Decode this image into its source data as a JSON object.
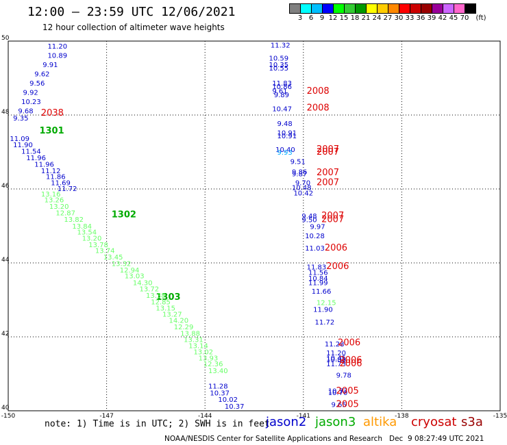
{
  "header": {
    "title": "12:00 – 23:59 UTC 12/06/2021",
    "subtitle": "12 hour collection of altimeter wave heights"
  },
  "scale": {
    "colors": [
      "#808080",
      "#00ffff",
      "#00bfff",
      "#0000ff",
      "#00ff00",
      "#33cc33",
      "#009900",
      "#ffff00",
      "#ffcc00",
      "#ff8800",
      "#ff0000",
      "#cc0000",
      "#990000",
      "#990099",
      "#cc66ff",
      "#ff66cc",
      "#000000"
    ],
    "labels": [
      "3",
      "6",
      "9",
      "12",
      "15",
      "18",
      "21",
      "24",
      "27",
      "30",
      "33",
      "36",
      "39",
      "42",
      "45",
      "70",
      "(ft)"
    ]
  },
  "chart_data": {
    "type": "scatter",
    "xlim": [
      -150,
      -135
    ],
    "ylim": [
      40,
      50
    ],
    "x_ticks": [
      "-150",
      "-147",
      "-144",
      "-141",
      "-138",
      "-135"
    ],
    "y_ticks": [
      "50",
      "48",
      "46",
      "44",
      "42",
      "40"
    ],
    "grid": true,
    "series": [
      {
        "name": "jason2",
        "color": "#0000cc",
        "points": [
          {
            "x": -148.8,
            "y": 49.8,
            "label": "11.20"
          },
          {
            "x": -148.8,
            "y": 49.55,
            "label": "10.89"
          },
          {
            "x": -148.95,
            "y": 49.3,
            "label": "9.91"
          },
          {
            "x": -149.2,
            "y": 49.05,
            "label": "9.62"
          },
          {
            "x": -149.35,
            "y": 48.8,
            "label": "9.56"
          },
          {
            "x": -149.55,
            "y": 48.55,
            "label": "9.92"
          },
          {
            "x": -149.6,
            "y": 48.3,
            "label": "10.23"
          },
          {
            "x": -149.7,
            "y": 48.05,
            "label": "9.68"
          },
          {
            "x": -149.85,
            "y": 47.85,
            "label": "9.35"
          },
          {
            "x": -149.95,
            "y": 47.3,
            "label": "11.09"
          },
          {
            "x": -149.85,
            "y": 47.13,
            "label": "11.90"
          },
          {
            "x": -149.6,
            "y": 46.95,
            "label": "11.54"
          },
          {
            "x": -149.45,
            "y": 46.78,
            "label": "11.96"
          },
          {
            "x": -149.2,
            "y": 46.6,
            "label": "11.96"
          },
          {
            "x": -149.0,
            "y": 46.43,
            "label": "11.12"
          },
          {
            "x": -148.85,
            "y": 46.27,
            "label": "11.86"
          },
          {
            "x": -148.7,
            "y": 46.1,
            "label": "11.69"
          },
          {
            "x": -148.5,
            "y": 45.94,
            "label": "11.72"
          },
          {
            "x": -143.9,
            "y": 40.6,
            "label": "11.28"
          },
          {
            "x": -143.85,
            "y": 40.42,
            "label": "10.37"
          },
          {
            "x": -143.6,
            "y": 40.24,
            "label": "10.02"
          },
          {
            "x": -143.4,
            "y": 40.06,
            "label": "10.37"
          },
          {
            "x": -142.0,
            "y": 49.82,
            "label": "11.32"
          },
          {
            "x": -142.05,
            "y": 49.47,
            "label": "10.59"
          },
          {
            "x": -142.05,
            "y": 49.3,
            "label": "10.35"
          },
          {
            "x": -142.05,
            "y": 49.2,
            "label": "10.55"
          },
          {
            "x": -141.95,
            "y": 48.8,
            "label": "11.83"
          },
          {
            "x": -141.95,
            "y": 48.7,
            "label": "10.86"
          },
          {
            "x": -141.95,
            "y": 48.58,
            "label": "9.61"
          },
          {
            "x": -141.9,
            "y": 48.48,
            "label": "9.89"
          },
          {
            "x": -141.95,
            "y": 48.1,
            "label": "10.47"
          },
          {
            "x": -141.8,
            "y": 47.7,
            "label": "9.48"
          },
          {
            "x": -141.8,
            "y": 47.45,
            "label": "10.91"
          },
          {
            "x": -141.8,
            "y": 47.37,
            "label": "10.91"
          },
          {
            "x": -141.85,
            "y": 47.0,
            "label": "10.40"
          },
          {
            "x": -141.4,
            "y": 46.68,
            "label": "9.51"
          },
          {
            "x": -141.35,
            "y": 46.4,
            "label": "9.86"
          },
          {
            "x": -141.35,
            "y": 46.34,
            "label": "9.87"
          },
          {
            "x": -141.25,
            "y": 46.1,
            "label": "9.70"
          },
          {
            "x": -141.35,
            "y": 45.97,
            "label": "10.48"
          },
          {
            "x": -141.3,
            "y": 45.82,
            "label": "10.42"
          },
          {
            "x": -141.05,
            "y": 45.2,
            "label": "9.48"
          },
          {
            "x": -141.05,
            "y": 45.1,
            "label": "9.50"
          },
          {
            "x": -140.8,
            "y": 44.92,
            "label": "9.97"
          },
          {
            "x": -140.95,
            "y": 44.67,
            "label": "10.28"
          },
          {
            "x": -140.95,
            "y": 44.33,
            "label": "11.03"
          },
          {
            "x": -140.9,
            "y": 43.82,
            "label": "11.83"
          },
          {
            "x": -140.85,
            "y": 43.68,
            "label": "11.56"
          },
          {
            "x": -140.85,
            "y": 43.52,
            "label": "10.84"
          },
          {
            "x": -140.85,
            "y": 43.4,
            "label": "11.99"
          },
          {
            "x": -140.75,
            "y": 43.17,
            "label": "11.66"
          },
          {
            "x": -140.7,
            "y": 42.68,
            "label": "11.90"
          },
          {
            "x": -140.65,
            "y": 42.33,
            "label": "11.72"
          },
          {
            "x": -140.35,
            "y": 41.74,
            "label": "11.28"
          },
          {
            "x": -140.3,
            "y": 41.5,
            "label": "11.20"
          },
          {
            "x": -140.3,
            "y": 41.36,
            "label": "10.45"
          },
          {
            "x": -140.3,
            "y": 41.32,
            "label": "10.88"
          },
          {
            "x": -140.3,
            "y": 41.2,
            "label": "11.73"
          },
          {
            "x": -140.0,
            "y": 40.9,
            "label": "9.78"
          },
          {
            "x": -140.25,
            "y": 40.47,
            "label": "10.77"
          },
          {
            "x": -140.25,
            "y": 40.43,
            "label": "10.70"
          },
          {
            "x": -140.15,
            "y": 40.1,
            "label": "9.65"
          }
        ]
      },
      {
        "name": "jason3",
        "color": "#00aa00",
        "points": [
          {
            "x": -149.05,
            "y": 47.5,
            "label": "1301"
          },
          {
            "x": -146.85,
            "y": 45.23,
            "label": "1302"
          },
          {
            "x": -145.5,
            "y": 43.0,
            "label": "1303"
          }
        ]
      },
      {
        "name": "jason3 (light)",
        "color": "#66ff66",
        "points": [
          {
            "x": -149.0,
            "y": 45.8,
            "label": "13.16"
          },
          {
            "x": -148.9,
            "y": 45.64,
            "label": "13.26"
          },
          {
            "x": -148.75,
            "y": 45.46,
            "label": "13.20"
          },
          {
            "x": -148.55,
            "y": 45.29,
            "label": "12.87"
          },
          {
            "x": -148.3,
            "y": 45.11,
            "label": "13.82"
          },
          {
            "x": -148.05,
            "y": 44.93,
            "label": "13.84"
          },
          {
            "x": -147.9,
            "y": 44.77,
            "label": "13.54"
          },
          {
            "x": -147.75,
            "y": 44.6,
            "label": "13.20"
          },
          {
            "x": -147.55,
            "y": 44.43,
            "label": "13.78"
          },
          {
            "x": -147.35,
            "y": 44.27,
            "label": "13.74"
          },
          {
            "x": -147.1,
            "y": 44.09,
            "label": "13.45"
          },
          {
            "x": -146.85,
            "y": 43.92,
            "label": "13.32"
          },
          {
            "x": -146.6,
            "y": 43.74,
            "label": "12.94"
          },
          {
            "x": -146.45,
            "y": 43.58,
            "label": "13.03"
          },
          {
            "x": -146.2,
            "y": 43.4,
            "label": "14.30"
          },
          {
            "x": -146.0,
            "y": 43.23,
            "label": "13.72"
          },
          {
            "x": -145.8,
            "y": 43.06,
            "label": "13.38"
          },
          {
            "x": -145.65,
            "y": 42.88,
            "label": "12.85"
          },
          {
            "x": -145.5,
            "y": 42.71,
            "label": "13.15"
          },
          {
            "x": -145.3,
            "y": 42.55,
            "label": "13.27"
          },
          {
            "x": -145.1,
            "y": 42.38,
            "label": "14.20"
          },
          {
            "x": -144.95,
            "y": 42.2,
            "label": "12.29"
          },
          {
            "x": -144.75,
            "y": 42.03,
            "label": "13.88"
          },
          {
            "x": -144.65,
            "y": 41.86,
            "label": "13.31"
          },
          {
            "x": -144.5,
            "y": 41.69,
            "label": "13.14"
          },
          {
            "x": -144.35,
            "y": 41.53,
            "label": "13.02"
          },
          {
            "x": -144.2,
            "y": 41.36,
            "label": "13.93"
          },
          {
            "x": -144.05,
            "y": 41.2,
            "label": "12.36"
          },
          {
            "x": -143.9,
            "y": 41.02,
            "label": "13.40"
          },
          {
            "x": -140.6,
            "y": 42.86,
            "label": "12.15"
          }
        ]
      },
      {
        "name": "jason3 (cyan)",
        "color": "#00aaff",
        "points": [
          {
            "x": -141.8,
            "y": 46.93,
            "label": "9.93"
          }
        ]
      },
      {
        "name": "s3a",
        "color": "#dd0000",
        "points": [
          {
            "x": -149.0,
            "y": 47.98,
            "label": "2038"
          },
          {
            "x": -140.9,
            "y": 48.57,
            "label": "2008"
          },
          {
            "x": -140.9,
            "y": 48.12,
            "label": "2008"
          },
          {
            "x": -140.6,
            "y": 47.0,
            "label": "2007"
          },
          {
            "x": -140.6,
            "y": 46.93,
            "label": "2007"
          },
          {
            "x": -140.6,
            "y": 46.37,
            "label": "2007"
          },
          {
            "x": -140.6,
            "y": 46.1,
            "label": "2007"
          },
          {
            "x": -140.45,
            "y": 45.2,
            "label": "2007"
          },
          {
            "x": -140.45,
            "y": 45.1,
            "label": "2007"
          },
          {
            "x": -140.35,
            "y": 44.33,
            "label": "2006"
          },
          {
            "x": -140.3,
            "y": 43.83,
            "label": "2006"
          },
          {
            "x": -139.95,
            "y": 41.77,
            "label": "2006"
          },
          {
            "x": -139.9,
            "y": 41.3,
            "label": "2006"
          },
          {
            "x": -139.9,
            "y": 41.2,
            "label": "2006"
          },
          {
            "x": -140.0,
            "y": 40.46,
            "label": "2005"
          },
          {
            "x": -140.0,
            "y": 40.1,
            "label": "2005"
          }
        ]
      }
    ]
  },
  "footer": {
    "note": "note: 1) Time is in UTC; 2) SWH is in feet",
    "satellites": [
      {
        "name": "jason2",
        "color": "#0000cc"
      },
      {
        "name": "jason3",
        "color": "#00aa00"
      },
      {
        "name": "altika",
        "color": "#ff9900"
      },
      {
        "name": "cryosat",
        "color": "#cc0000"
      },
      {
        "name": "s3a",
        "color": "#990000"
      }
    ],
    "credit": "NOAA/NESDIS Center for Satellite Applications and Research   Dec  9 08:27:49 UTC 2021"
  }
}
